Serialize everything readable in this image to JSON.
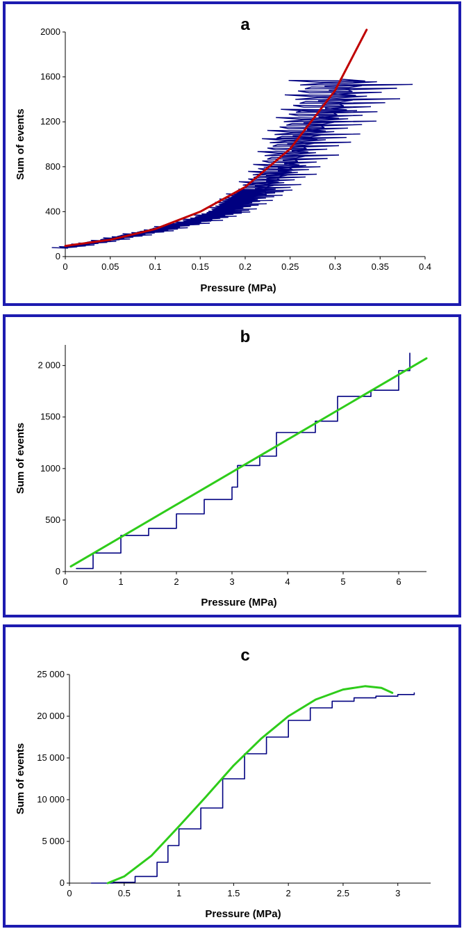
{
  "chart_data": [
    {
      "type": "line",
      "title": "a",
      "xlabel": "Pressure (MPa)",
      "ylabel": "Sum of events",
      "xlim": [
        0,
        0.4
      ],
      "ylim": [
        0,
        2000
      ],
      "xticks": [
        "0",
        "0.05",
        "0.1",
        "0.15",
        "0.2",
        "0.25",
        "0.3",
        "0.35",
        "0.4"
      ],
      "yticks": [
        "0",
        "400",
        "800",
        "1200",
        "1600",
        "2000"
      ],
      "grid": false,
      "series": [
        {
          "color": "#000080",
          "style": "noisy data",
          "x": [
            0.0,
            0.05,
            0.1,
            0.15,
            0.18,
            0.2,
            0.22,
            0.25,
            0.27,
            0.3,
            0.32
          ],
          "y": [
            80,
            150,
            230,
            320,
            400,
            500,
            600,
            800,
            1050,
            1300,
            1580
          ]
        },
        {
          "color": "#c00000",
          "style": "fit",
          "x": [
            0.0,
            0.05,
            0.1,
            0.15,
            0.2,
            0.25,
            0.3,
            0.335
          ],
          "y": [
            95,
            150,
            245,
            400,
            620,
            960,
            1480,
            2020
          ]
        }
      ]
    },
    {
      "type": "line",
      "title": "b",
      "xlabel": "Pressure (MPa)",
      "ylabel": "Sum of events",
      "xlim": [
        0,
        6.5
      ],
      "ylim": [
        0,
        2200
      ],
      "xticks": [
        "0",
        "1",
        "2",
        "3",
        "4",
        "5",
        "6"
      ],
      "yticks": [
        "0",
        "500",
        "1000",
        "1500",
        "2 000"
      ],
      "grid": false,
      "series": [
        {
          "color": "#000080",
          "style": "data",
          "x": [
            0.2,
            0.5,
            1.0,
            1.5,
            2.0,
            2.5,
            3.0,
            3.1,
            3.5,
            3.8,
            4.5,
            4.9,
            5.5,
            6.0,
            6.2
          ],
          "y": [
            30,
            180,
            350,
            420,
            560,
            700,
            820,
            1030,
            1120,
            1350,
            1460,
            1700,
            1760,
            1950,
            2120
          ]
        },
        {
          "color": "#2ecc1a",
          "style": "fit",
          "x": [
            0.1,
            6.5
          ],
          "y": [
            50,
            2070
          ]
        }
      ]
    },
    {
      "type": "line",
      "title": "c",
      "xlabel": "Pressure (MPa)",
      "ylabel": "Sum of events",
      "xlim": [
        0,
        3.3
      ],
      "ylim": [
        0,
        25000
      ],
      "xticks": [
        "0",
        "0.5",
        "1",
        "1.5",
        "2",
        "2.5",
        "3"
      ],
      "yticks": [
        "0",
        "5 000",
        "10 000",
        "15 000",
        "20 000",
        "25 000"
      ],
      "grid": false,
      "series": [
        {
          "color": "#000080",
          "style": "data",
          "x": [
            0.2,
            0.4,
            0.6,
            0.8,
            0.9,
            1.0,
            1.2,
            1.4,
            1.6,
            1.8,
            2.0,
            2.2,
            2.4,
            2.6,
            2.8,
            3.0,
            3.15
          ],
          "y": [
            0,
            100,
            800,
            2500,
            4500,
            6500,
            9000,
            12500,
            15500,
            17500,
            19500,
            21000,
            21800,
            22200,
            22400,
            22600,
            22800
          ]
        },
        {
          "color": "#2ecc1a",
          "style": "fit",
          "x": [
            0.35,
            0.5,
            0.75,
            1.0,
            1.25,
            1.5,
            1.75,
            2.0,
            2.25,
            2.5,
            2.7,
            2.85,
            2.95
          ],
          "y": [
            0,
            800,
            3300,
            6800,
            10400,
            14100,
            17300,
            20000,
            22000,
            23200,
            23600,
            23400,
            22800
          ]
        }
      ]
    }
  ]
}
